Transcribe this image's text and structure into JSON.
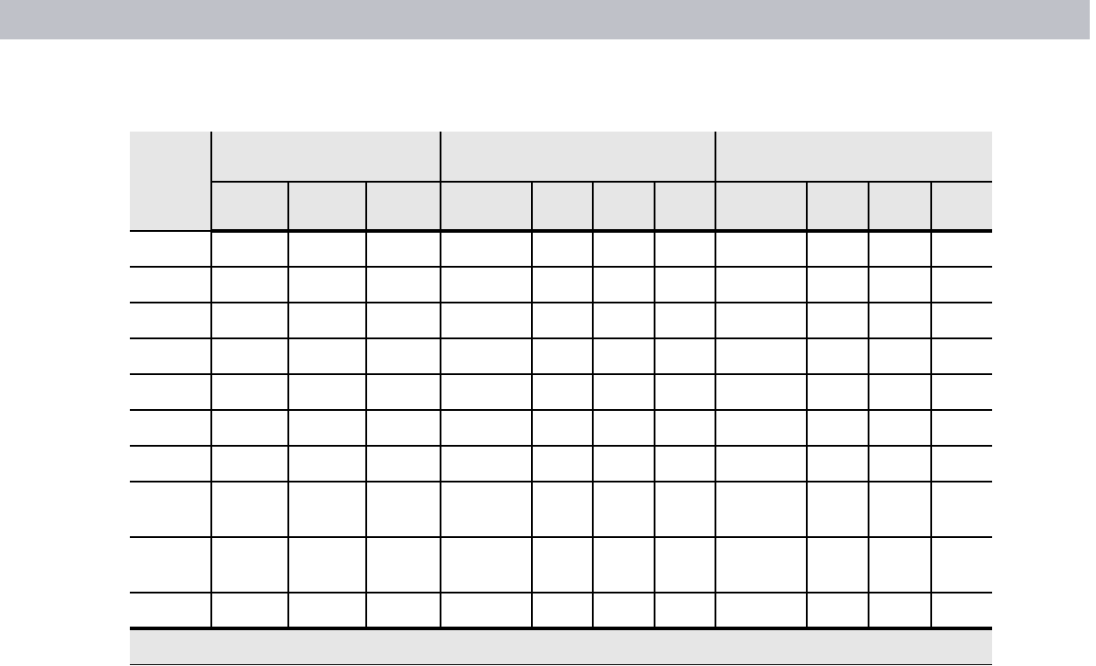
{
  "colors": {
    "top_bar": "#bfc1c8",
    "header_fill": "#e6e6e6",
    "rule": "#000000"
  },
  "table": {
    "header_groups": [
      "",
      "",
      ""
    ],
    "sub_headers": [
      "",
      "",
      "",
      "",
      "",
      "",
      "",
      "",
      "",
      "",
      ""
    ],
    "rows": 10,
    "footer": ""
  }
}
